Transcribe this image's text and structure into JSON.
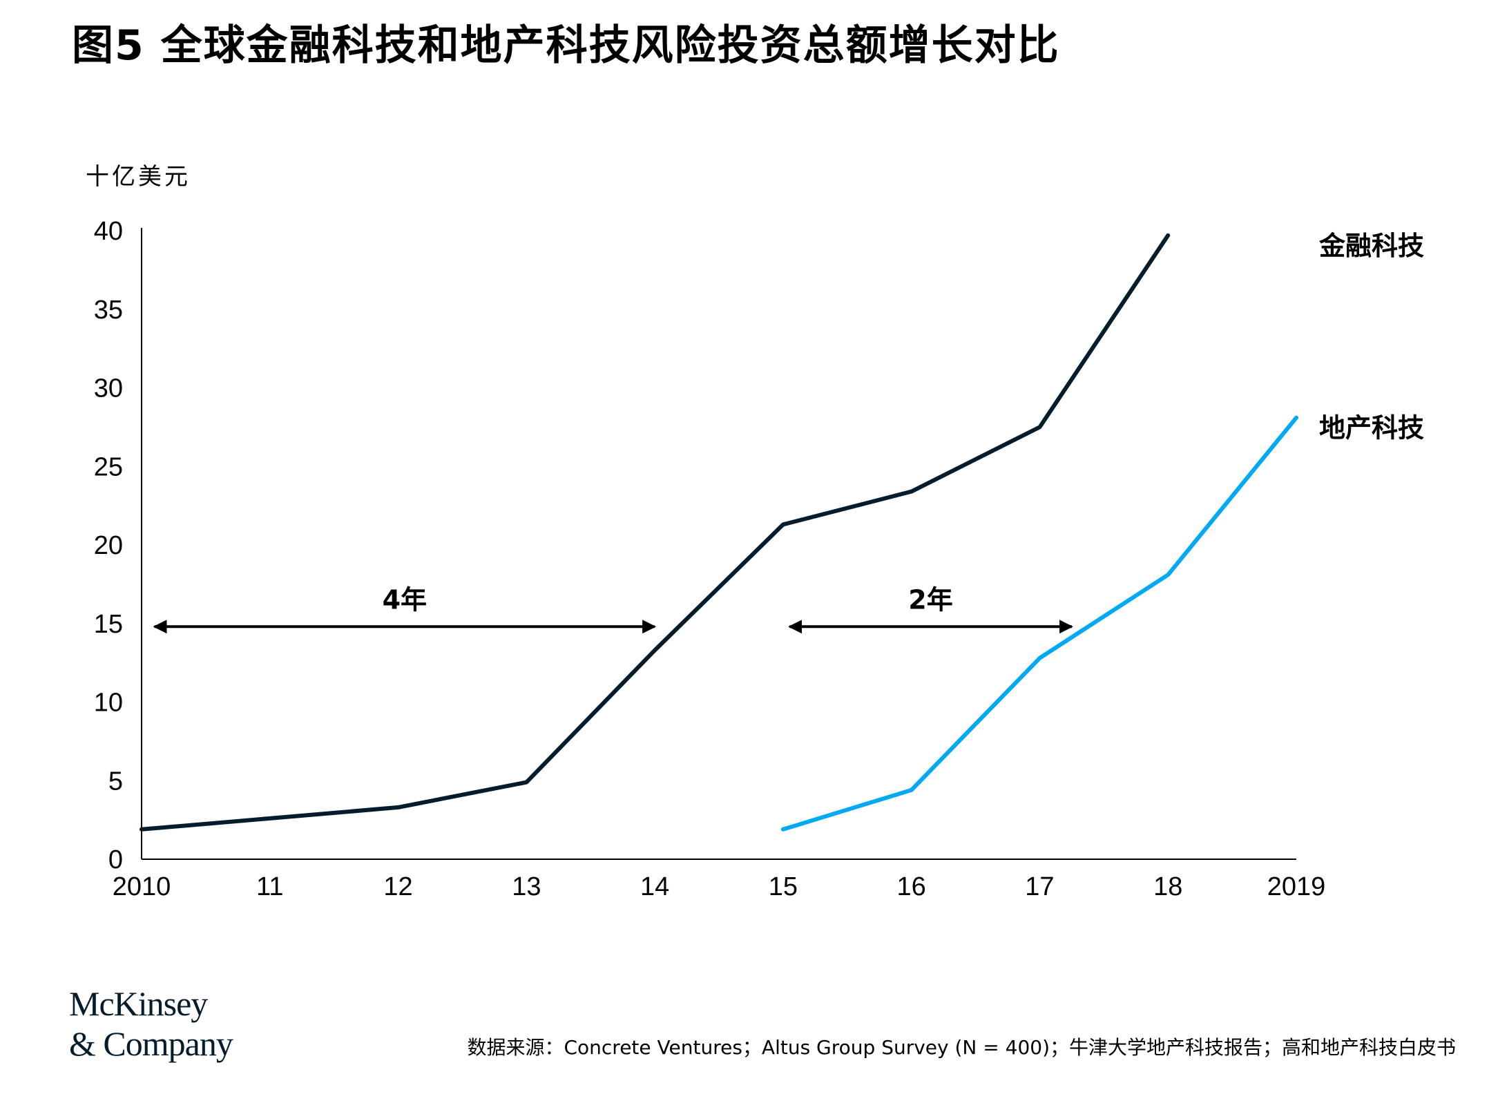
{
  "title": "图5 全球金融科技和地产科技风险投资总额增长对比",
  "unit_label": "十亿美元",
  "chart_data": {
    "type": "line",
    "title": "图5 全球金融科技和地产科技风险投资总额增长对比",
    "ylabel": "十亿美元",
    "xlabel": "",
    "x": [
      2010,
      2011,
      2012,
      2013,
      2014,
      2015,
      2016,
      2017,
      2018,
      2019
    ],
    "x_tick_labels": [
      "2010",
      "11",
      "12",
      "13",
      "14",
      "15",
      "16",
      "17",
      "18",
      "2019"
    ],
    "y_ticks": [
      0,
      5,
      10,
      15,
      20,
      25,
      30,
      35,
      40
    ],
    "ylim": [
      0,
      40
    ],
    "grid": false,
    "series": [
      {
        "name": "金融科技",
        "color": "#051c2c",
        "values": [
          1.9,
          2.6,
          3.3,
          4.9,
          13.3,
          21.3,
          23.4,
          27.5,
          39.7,
          null
        ]
      },
      {
        "name": "地产科技",
        "color": "#00a9f4",
        "values": [
          null,
          null,
          null,
          null,
          null,
          1.9,
          4.4,
          12.8,
          18.1,
          28.1
        ]
      }
    ],
    "annotations": [
      {
        "label": "4年",
        "x_start": 2010.1,
        "x_end": 2014.0,
        "y": 14.8
      },
      {
        "label": "2年",
        "x_start": 2015.05,
        "x_end": 2017.25,
        "y": 14.8
      }
    ]
  },
  "logo": {
    "line1": "McKinsey",
    "line2": "& Company"
  },
  "source": "数据来源：Concrete Ventures；Altus Group Survey (N = 400)；牛津大学地产科技报告；高和地产科技白皮书"
}
